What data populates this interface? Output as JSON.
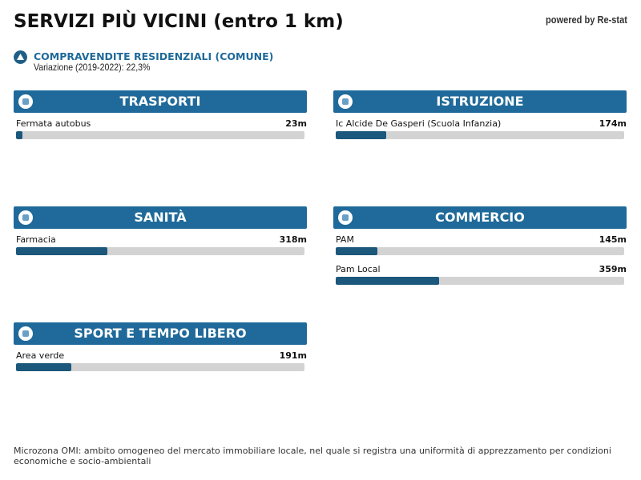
{
  "header": {
    "title": "SERVIZI PIÙ VICINI (entro 1 km)",
    "powered_by": "powered by Re-stat"
  },
  "info": {
    "title": "COMPRAVENDITE RESIDENZIALI (COMUNE)",
    "subtitle": "Variazione (2019-2022): 22,3%"
  },
  "scale": {
    "xlim": [
      0,
      1000
    ]
  },
  "sections": [
    {
      "title": "TRASPORTI",
      "items": [
        {
          "name": "Fermata autobus",
          "value": 23,
          "value_label": "23m"
        }
      ]
    },
    {
      "title": "ISTRUZIONE",
      "items": [
        {
          "name": "Ic Alcide De Gasperi (Scuola Infanzia)",
          "value": 174,
          "value_label": "174m"
        }
      ]
    },
    {
      "title": "SANITÀ",
      "items": [
        {
          "name": "Farmacia",
          "value": 318,
          "value_label": "318m"
        }
      ]
    },
    {
      "title": "COMMERCIO",
      "items": [
        {
          "name": "PAM",
          "value": 145,
          "value_label": "145m"
        },
        {
          "name": "Pam Local",
          "value": 359,
          "value_label": "359m"
        }
      ]
    },
    {
      "title": "SPORT E TEMPO LIBERO",
      "items": [
        {
          "name": "Area verde",
          "value": 191,
          "value_label": "191m"
        }
      ]
    }
  ],
  "footer": {
    "note": "Microzona OMI: ambito omogeneo del mercato immobiliare locale, nel quale si registra una uniformità di apprezzamento per condizioni economiche e socio-ambientali"
  }
}
